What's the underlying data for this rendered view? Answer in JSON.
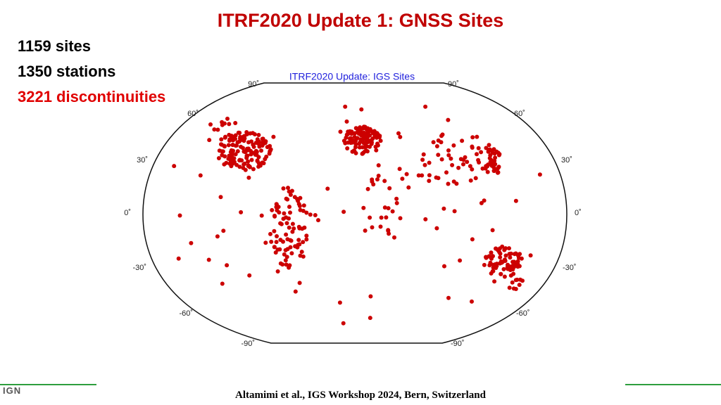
{
  "header": {
    "title": "ITRF2020 Update 1: GNSS Sites"
  },
  "stats": {
    "sites": "1159 sites",
    "stations": "1350 stations",
    "discontinuities": "3221 discontinuities"
  },
  "map": {
    "title": "ITRF2020 Update: IGS Sites",
    "lat_labels_left": [
      "90˚",
      "60˚",
      "30˚",
      "0˚",
      "-30˚",
      "-60˚",
      "-90˚"
    ],
    "lat_labels_right": [
      "90˚",
      "60˚",
      "30˚",
      "0˚",
      "-30˚",
      "-60˚",
      "-90˚"
    ]
  },
  "footer": {
    "citation": "Altamimi et al., IGS Workshop 2024, Bern, Switzerland",
    "logo": "IGN"
  }
}
